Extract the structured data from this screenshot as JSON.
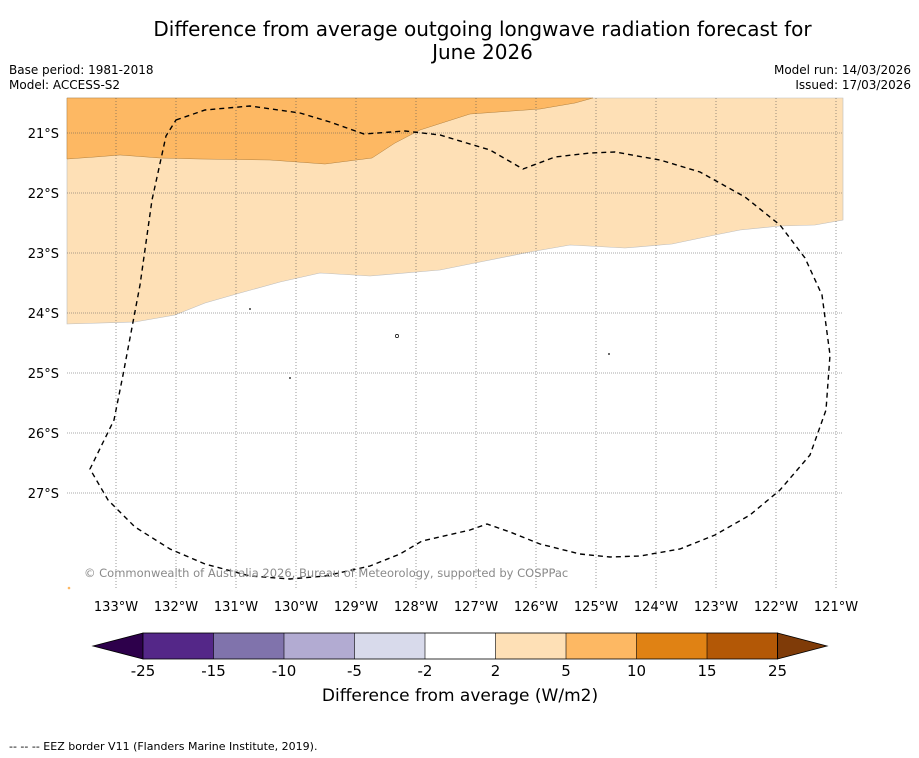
{
  "title_line1": "Difference from average outgoing longwave radiation forecast for",
  "title_line2": "June 2026",
  "base_period": "Base period: 1981-2018",
  "model": "Model: ACCESS-S2",
  "model_run": "Model run: 14/03/2026",
  "issued": "Issued: 17/03/2026",
  "copyright": "© Commonwealth of Australia 2026, Bureau of Meteorology, supported by COSPPac",
  "lat_labels": [
    "21°S",
    "22°S",
    "23°S",
    "24°S",
    "25°S",
    "26°S",
    "27°S"
  ],
  "lon_labels": [
    "133°W",
    "132°W",
    "131°W",
    "130°W",
    "129°W",
    "128°W",
    "127°W",
    "126°W",
    "125°W",
    "124°W",
    "123°W",
    "122°W",
    "121°W"
  ],
  "colorbar": {
    "title": "Difference from average (W/m2)",
    "ticks": [
      "-25",
      "-15",
      "-10",
      "-5",
      "-2",
      "2",
      "5",
      "10",
      "15",
      "25"
    ],
    "colors": {
      "under": "#2d004b",
      "c1": "#542788",
      "c2": "#8073ac",
      "c3": "#b2abd2",
      "c4": "#d8daeb",
      "c5": "#ffffff",
      "c6": "#fee0b6",
      "c7": "#fdb863",
      "c8": "#e08214",
      "c9": "#b35806",
      "over": "#7f3b08"
    }
  },
  "eez_legend": "--  --  -- EEZ border V11 (Flanders Marine Institute, 2019)."
}
